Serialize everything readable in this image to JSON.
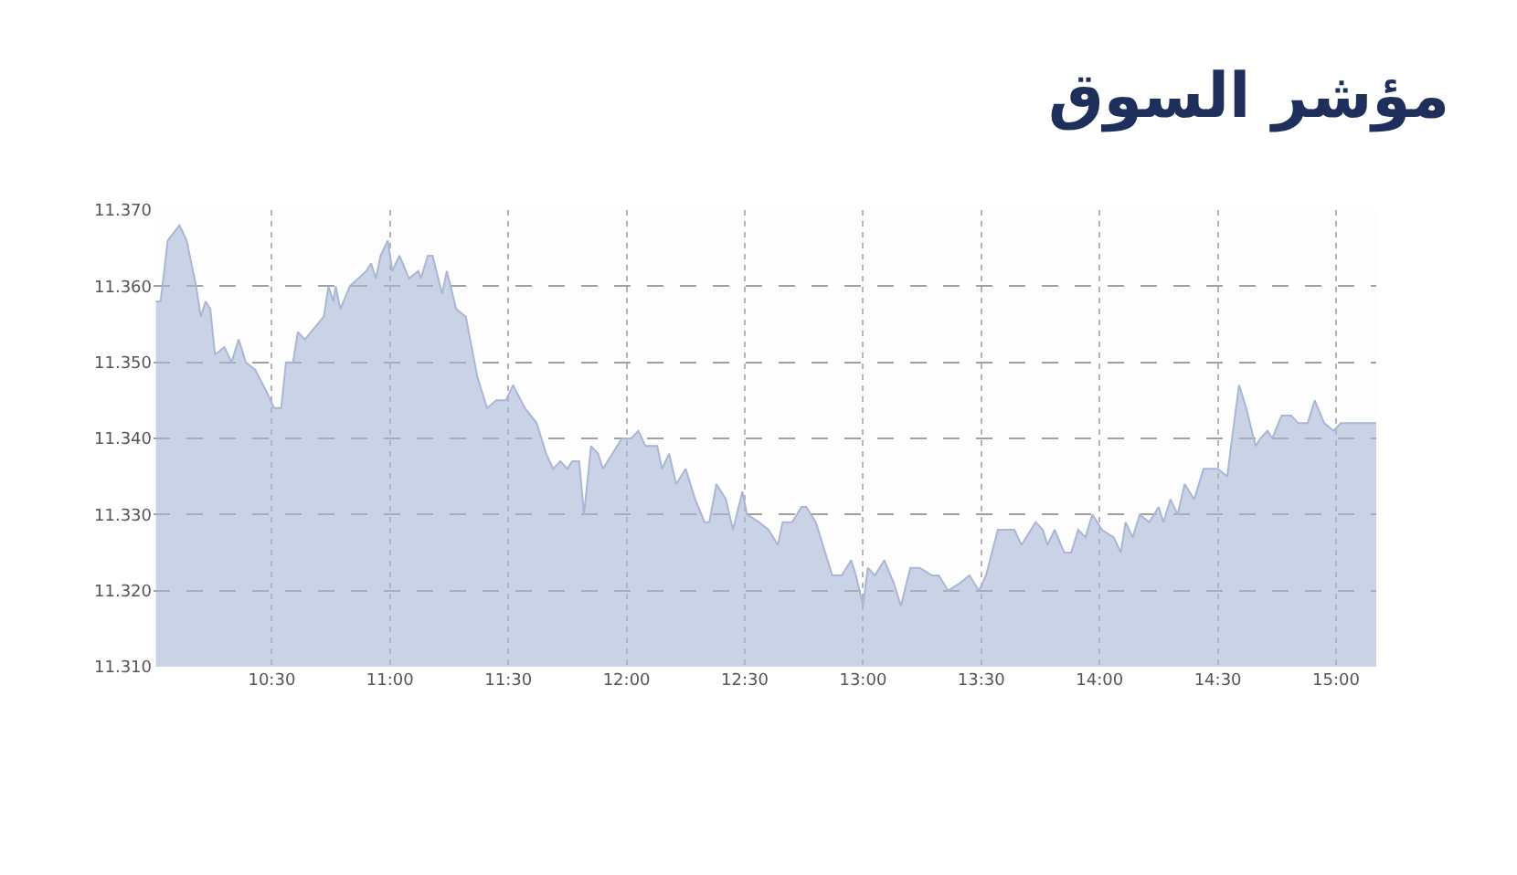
{
  "chart_data": {
    "type": "area",
    "title": "مؤشر السوق",
    "x": [
      10.01,
      10.03,
      10.06,
      10.11,
      10.14,
      10.18,
      10.2,
      10.22,
      10.24,
      10.26,
      10.3,
      10.33,
      10.36,
      10.39,
      10.43,
      10.48,
      10.51,
      10.54,
      10.56,
      10.59,
      10.61,
      10.64,
      10.72,
      10.74,
      10.76,
      10.77,
      10.79,
      10.83,
      10.9,
      10.92,
      10.94,
      10.96,
      10.99,
      11.01,
      11.04,
      11.08,
      11.12,
      11.13,
      11.16,
      11.18,
      11.22,
      11.24,
      11.28,
      11.32,
      11.37,
      11.41,
      11.45,
      11.49,
      11.52,
      11.57,
      11.62,
      11.66,
      11.69,
      11.72,
      11.75,
      11.77,
      11.8,
      11.82,
      11.85,
      11.88,
      11.9,
      11.94,
      11.98,
      12.02,
      12.05,
      12.08,
      12.13,
      12.15,
      12.18,
      12.21,
      12.25,
      12.29,
      12.33,
      12.35,
      12.38,
      12.42,
      12.45,
      12.49,
      12.51,
      12.56,
      12.6,
      12.64,
      12.66,
      12.7,
      12.74,
      12.76,
      12.8,
      12.83,
      12.87,
      12.91,
      12.95,
      12.97,
      13.0,
      13.02,
      13.05,
      13.09,
      13.13,
      13.16,
      13.2,
      13.24,
      13.29,
      13.32,
      13.36,
      13.41,
      13.45,
      13.49,
      13.52,
      13.57,
      13.6,
      13.64,
      13.67,
      13.69,
      13.73,
      13.76,
      13.78,
      13.81,
      13.85,
      13.88,
      13.91,
      13.94,
      13.97,
      14.01,
      14.06,
      14.09,
      14.11,
      14.14,
      14.17,
      14.21,
      14.25,
      14.27,
      14.3,
      14.33,
      14.36,
      14.4,
      14.44,
      14.5,
      14.54,
      14.56,
      14.59,
      14.62,
      14.66,
      14.68,
      14.71,
      14.73,
      14.77,
      14.81,
      14.84,
      14.88,
      14.91,
      14.95,
      14.99,
      15.02,
      15.17
    ],
    "values": [
      11358,
      11358,
      11366,
      11368,
      11366,
      11360,
      11356,
      11358,
      11357,
      11351,
      11352,
      11350,
      11353,
      11350,
      11349,
      11346,
      11344,
      11344,
      11350,
      11350,
      11354,
      11353,
      11356,
      11360,
      11358,
      11360,
      11357,
      11360,
      11362,
      11363,
      11361,
      11364,
      11366,
      11362,
      11364,
      11361,
      11362,
      11361,
      11364,
      11364,
      11359,
      11362,
      11357,
      11356,
      11348,
      11344,
      11345,
      11345,
      11347,
      11344,
      11342,
      11338,
      11336,
      11337,
      11336,
      11337,
      11337,
      11330,
      11339,
      11338,
      11336,
      11338,
      11340,
      11340,
      11341,
      11339,
      11339,
      11336,
      11338,
      11334,
      11336,
      11332,
      11329,
      11329,
      11334,
      11332,
      11328,
      11333,
      11330,
      11329,
      11328,
      11326,
      11329,
      11329,
      11331,
      11331,
      11329,
      11326,
      11322,
      11322,
      11324,
      11322,
      11318,
      11323,
      11322,
      11324,
      11321,
      11318,
      11323,
      11323,
      11322,
      11322,
      11320,
      11321,
      11322,
      11320,
      11322,
      11328,
      11328,
      11328,
      11326,
      11327,
      11329,
      11328,
      11326,
      11328,
      11325,
      11325,
      11328,
      11327,
      11330,
      11328,
      11327,
      11325,
      11329,
      11327,
      11330,
      11329,
      11331,
      11329,
      11332,
      11330,
      11334,
      11332,
      11336,
      11336,
      11335,
      11340,
      11347,
      11344,
      11339,
      11340,
      11341,
      11340,
      11343,
      11343,
      11342,
      11342,
      11345,
      11342,
      11341,
      11342,
      11342
    ],
    "color": "#a9b6d6",
    "xlim": [
      10.0,
      15.17
    ],
    "xticks": [
      {
        "value": 10.5,
        "label": "10:30"
      },
      {
        "value": 11,
        "label": "11:00"
      },
      {
        "value": 11.5,
        "label": "11:30"
      },
      {
        "value": 12,
        "label": "12:00"
      },
      {
        "value": 12.5,
        "label": "12:30"
      },
      {
        "value": 13,
        "label": "13:00"
      },
      {
        "value": 13.5,
        "label": "13:30"
      },
      {
        "value": 14,
        "label": "14:00"
      },
      {
        "value": 14.5,
        "label": "14:30"
      },
      {
        "value": 15,
        "label": "15:00"
      }
    ],
    "ylim": [
      11310,
      11370
    ],
    "yticks": [
      {
        "value": 11310,
        "label": "11.310"
      },
      {
        "value": 11320,
        "label": "11.320"
      },
      {
        "value": 11330,
        "label": "11.330"
      },
      {
        "value": 11340,
        "label": "11.340"
      },
      {
        "value": 11350,
        "label": "11.350"
      },
      {
        "value": 11360,
        "label": "11.360"
      },
      {
        "value": 11370,
        "label": "11.370"
      }
    ],
    "grid": true,
    "line_style": "solid",
    "marker": "none"
  }
}
